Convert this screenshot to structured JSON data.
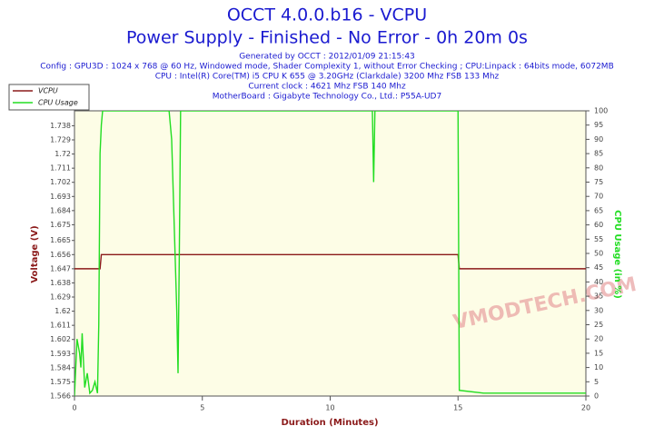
{
  "chart_data": {
    "type": "line",
    "title": "OCCT 4.0.0.b16 - VCPU",
    "subtitle": "Power Supply - Finished - No Error - 0h 20m 0s",
    "info": [
      "Generated by OCCT : 2012/01/09 21:15:43",
      "Config : GPU3D : 1024 x 768 @ 60 Hz, Windowed mode, Shader Complexity 1, without Error Checking ; CPU:Linpack : 64bits mode, 6072MB",
      "CPU : Intel(R) Core(TM) i5 CPU K 655 @ 3.20GHz (Clarkdale) 3200 Mhz FSB 133 Mhz",
      "Current clock : 4621 Mhz FSB 140 Mhz",
      "MotherBoard : Gigabyte Technology Co., Ltd.: P55A-UD7"
    ],
    "watermark": "VMODTECH.COM",
    "xlabel": "Duration (Minutes)",
    "ylabel": "Voltage (V)",
    "y2label": "CPU Usage (in %)",
    "xlim": [
      0,
      20
    ],
    "xticks": [
      0,
      5,
      10,
      15,
      20
    ],
    "ylim": [
      1.566,
      1.7475
    ],
    "yticks": [
      1.566,
      1.575,
      1.584,
      1.593,
      1.602,
      1.611,
      1.62,
      1.629,
      1.638,
      1.647,
      1.656,
      1.665,
      1.675,
      1.684,
      1.693,
      1.702,
      1.711,
      1.72,
      1.729,
      1.738
    ],
    "y2lim": [
      0,
      100
    ],
    "y2ticks": [
      0,
      5,
      10,
      15,
      20,
      25,
      30,
      35,
      40,
      45,
      50,
      55,
      60,
      65,
      70,
      75,
      80,
      85,
      90,
      95,
      100
    ],
    "legend": "top-left",
    "series": [
      {
        "name": "VCPU",
        "color": "#8b1a1a",
        "x": [
          0,
          1.0,
          1.05,
          15.0,
          15.05,
          20
        ],
        "values": [
          1.647,
          1.647,
          1.656,
          1.656,
          1.647,
          1.647
        ]
      },
      {
        "name": "CPU Usage",
        "color": "#22dd22",
        "axis": "y2",
        "x": [
          0,
          0.1,
          0.2,
          0.25,
          0.3,
          0.4,
          0.5,
          0.6,
          0.7,
          0.8,
          0.9,
          0.95,
          1.0,
          1.05,
          1.1,
          3.7,
          3.8,
          3.9,
          4.0,
          4.05,
          4.1,
          4.15,
          4.2,
          11.65,
          11.7,
          11.75,
          15.0,
          15.05,
          16,
          17,
          18,
          19,
          20
        ],
        "values": [
          0,
          20,
          15,
          10,
          22,
          3,
          8,
          1,
          2,
          5,
          1,
          25,
          85,
          95,
          100,
          100,
          90,
          60,
          30,
          8,
          50,
          100,
          100,
          100,
          75,
          100,
          100,
          2,
          1,
          1,
          1,
          1,
          1
        ]
      }
    ]
  }
}
